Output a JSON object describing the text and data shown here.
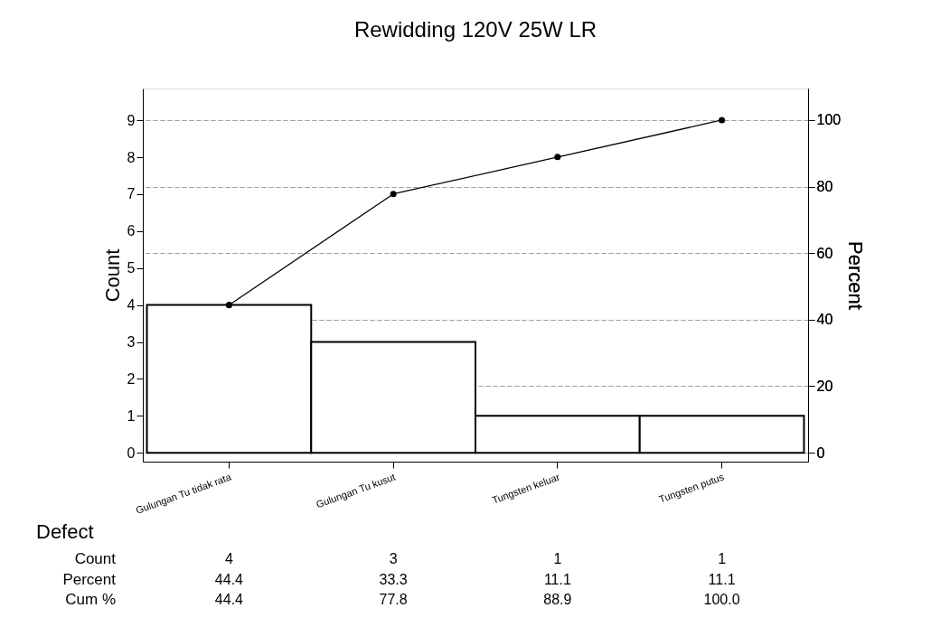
{
  "chart_data": {
    "type": "bar",
    "title": "Rewidding 120V 25W LR",
    "xlabel": "Defect",
    "ylabel": "Count",
    "y2label": "Percent",
    "categories": [
      "Gulungan Tu tidak rata",
      "Gulungan Tu kusut",
      "Tungsten keluar",
      "Tungsten putus"
    ],
    "series": [
      {
        "name": "Count",
        "color": "#ffffff",
        "values": [
          4,
          3,
          1,
          1
        ],
        "value_labels": [
          "4",
          "3",
          "1",
          "1"
        ]
      },
      {
        "type": "line",
        "axis": "y2",
        "color": "#000000",
        "values": [
          44.4,
          77.8,
          88.9,
          100.0
        ],
        "value_labels": [
          "44.4",
          "77.8",
          "88.9",
          "100.0"
        ]
      }
    ],
    "annotations": [
      "Percent",
      "44.4",
      "33.3",
      "11.1",
      "11.1",
      "Cum %"
    ],
    "ylim": [
      -0.24,
      9.86
    ],
    "yticks": [
      0,
      1,
      2,
      3,
      4,
      5,
      6,
      7,
      8,
      9
    ],
    "y2lim": [
      -2.7,
      109.5
    ],
    "y2ticks": [
      0,
      20,
      40,
      60,
      80,
      100
    ],
    "grid": "y2",
    "marker": "circle",
    "line_style": "solid"
  }
}
